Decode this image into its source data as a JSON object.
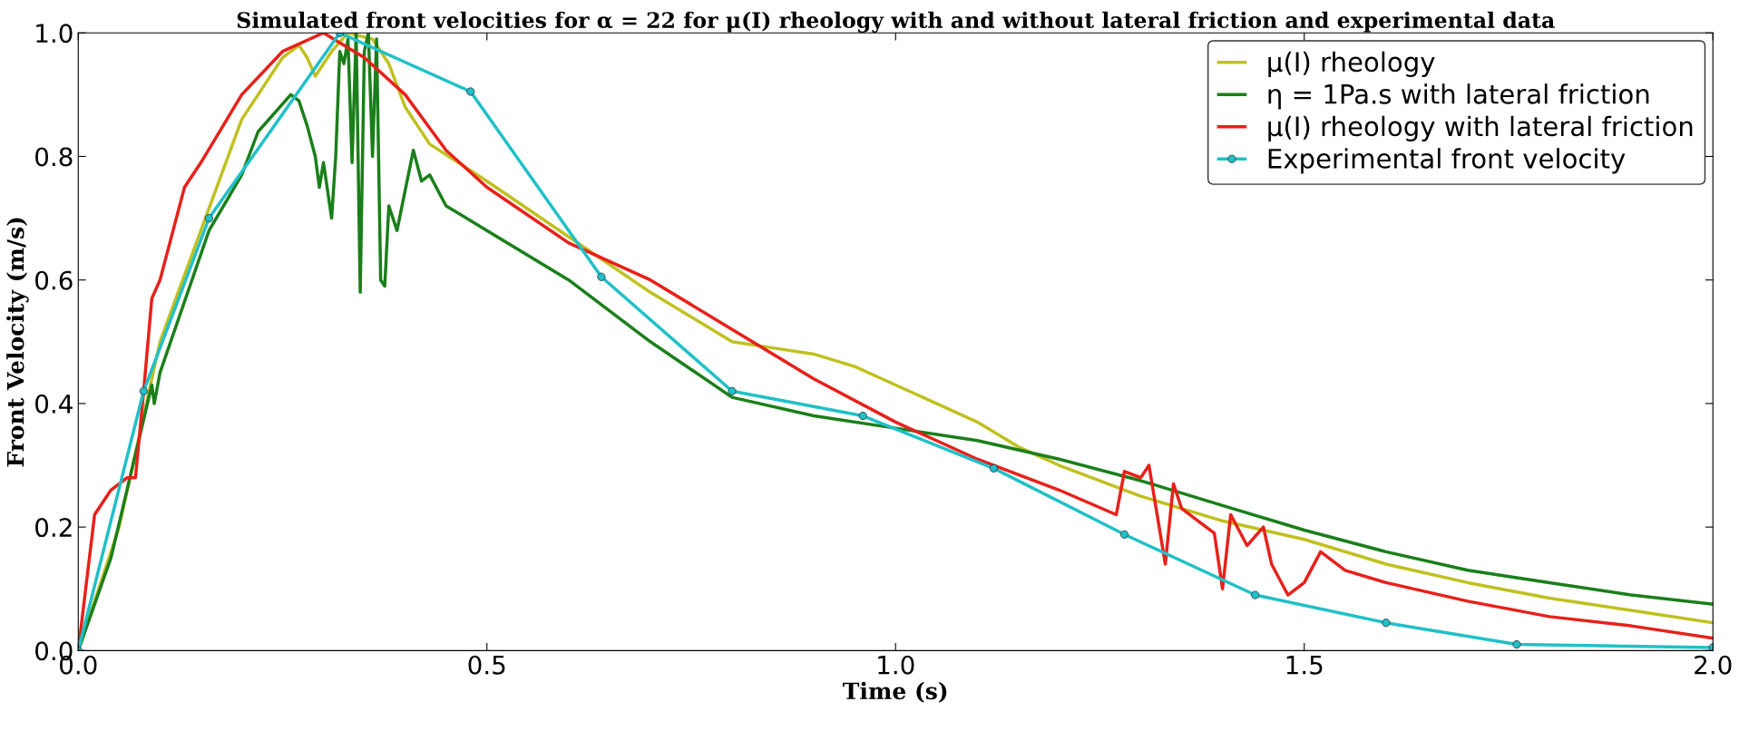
{
  "chart_data": {
    "type": "line",
    "title": "Simulated front velocities for α = 22 for μ(I) rheology with and without lateral friction and experimental data",
    "xlabel": "Time (s)",
    "ylabel": "Front Velocity (m/s)",
    "xlim": [
      0,
      2.0
    ],
    "ylim": [
      0,
      1.0
    ],
    "xticks": [
      {
        "value": 0,
        "label": "0.0"
      },
      {
        "value": 0.5,
        "label": "0.5"
      },
      {
        "value": 1.0,
        "label": "1.0"
      },
      {
        "value": 1.5,
        "label": "1.5"
      },
      {
        "value": 2.0,
        "label": "2.0"
      }
    ],
    "yticks": [
      {
        "value": 0,
        "label": "0.0"
      },
      {
        "value": 0.2,
        "label": "0.2"
      },
      {
        "value": 0.4,
        "label": "0.4"
      },
      {
        "value": 0.6,
        "label": "0.6"
      },
      {
        "value": 0.8,
        "label": "0.8"
      },
      {
        "value": 1.0,
        "label": "1.0"
      }
    ],
    "grid": false,
    "legend": "top right",
    "series": [
      {
        "name": "μ(I) rheology",
        "color": "#c0c020",
        "marker": "none",
        "x": [
          0,
          0.05,
          0.1,
          0.15,
          0.2,
          0.22,
          0.25,
          0.27,
          0.28,
          0.29,
          0.31,
          0.33,
          0.36,
          0.38,
          0.4,
          0.43,
          0.5,
          0.6,
          0.7,
          0.8,
          0.85,
          0.9,
          0.95,
          1.0,
          1.05,
          1.1,
          1.15,
          1.2,
          1.3,
          1.4,
          1.5,
          1.6,
          1.7,
          1.8,
          1.9,
          2.0
        ],
        "values": [
          0,
          0.2,
          0.5,
          0.68,
          0.86,
          0.9,
          0.96,
          0.98,
          0.96,
          0.93,
          0.97,
          1.0,
          0.99,
          0.95,
          0.88,
          0.82,
          0.76,
          0.67,
          0.58,
          0.5,
          0.49,
          0.48,
          0.46,
          0.43,
          0.4,
          0.37,
          0.33,
          0.3,
          0.25,
          0.21,
          0.18,
          0.14,
          0.11,
          0.085,
          0.065,
          0.045
        ]
      },
      {
        "name": "η = 1Pa.s with lateral friction",
        "color": "#1a7f1a",
        "marker": "none",
        "x": [
          0,
          0.04,
          0.09,
          0.093,
          0.1,
          0.16,
          0.2,
          0.22,
          0.26,
          0.27,
          0.28,
          0.29,
          0.295,
          0.3,
          0.31,
          0.315,
          0.32,
          0.325,
          0.33,
          0.335,
          0.34,
          0.345,
          0.35,
          0.355,
          0.36,
          0.365,
          0.37,
          0.375,
          0.38,
          0.39,
          0.41,
          0.42,
          0.43,
          0.45,
          0.5,
          0.6,
          0.7,
          0.8,
          0.9,
          1.0,
          1.1,
          1.2,
          1.3,
          1.4,
          1.5,
          1.6,
          1.7,
          1.8,
          1.9,
          2.0
        ],
        "values": [
          0,
          0.15,
          0.43,
          0.4,
          0.45,
          0.68,
          0.77,
          0.84,
          0.9,
          0.89,
          0.85,
          0.8,
          0.75,
          0.79,
          0.7,
          0.8,
          0.97,
          0.95,
          0.99,
          0.79,
          1.0,
          0.58,
          0.97,
          1.0,
          0.8,
          0.99,
          0.6,
          0.59,
          0.72,
          0.68,
          0.81,
          0.76,
          0.77,
          0.72,
          0.68,
          0.6,
          0.5,
          0.41,
          0.38,
          0.36,
          0.34,
          0.31,
          0.275,
          0.235,
          0.195,
          0.16,
          0.13,
          0.11,
          0.09,
          0.075
        ]
      },
      {
        "name": "μ(I) rheology with lateral friction",
        "color": "#e8201a",
        "marker": "none",
        "x": [
          0,
          0.02,
          0.04,
          0.06,
          0.07,
          0.08,
          0.09,
          0.1,
          0.13,
          0.15,
          0.2,
          0.25,
          0.3,
          0.35,
          0.4,
          0.45,
          0.5,
          0.6,
          0.7,
          0.8,
          0.9,
          1.0,
          1.1,
          1.2,
          1.27,
          1.28,
          1.3,
          1.31,
          1.32,
          1.33,
          1.34,
          1.35,
          1.37,
          1.39,
          1.4,
          1.41,
          1.43,
          1.45,
          1.46,
          1.48,
          1.5,
          1.52,
          1.55,
          1.6,
          1.7,
          1.8,
          1.9,
          2.0
        ],
        "values": [
          0,
          0.22,
          0.26,
          0.28,
          0.28,
          0.42,
          0.57,
          0.6,
          0.75,
          0.79,
          0.9,
          0.97,
          1.0,
          0.96,
          0.9,
          0.81,
          0.75,
          0.66,
          0.6,
          0.52,
          0.44,
          0.37,
          0.31,
          0.26,
          0.22,
          0.29,
          0.28,
          0.3,
          0.22,
          0.14,
          0.27,
          0.23,
          0.21,
          0.19,
          0.1,
          0.22,
          0.17,
          0.2,
          0.14,
          0.09,
          0.11,
          0.16,
          0.13,
          0.11,
          0.08,
          0.055,
          0.04,
          0.02
        ]
      },
      {
        "name": "Experimental front velocity",
        "color": "#20c0c8",
        "marker": "circle",
        "x": [
          0,
          0.08,
          0.16,
          0.32,
          0.48,
          0.64,
          0.8,
          0.96,
          1.12,
          1.28,
          1.44,
          1.6,
          1.76,
          2.0
        ],
        "values": [
          0,
          0.42,
          0.7,
          1.0,
          0.905,
          0.605,
          0.42,
          0.38,
          0.295,
          0.188,
          0.09,
          0.045,
          0.01,
          0.005
        ]
      }
    ]
  }
}
